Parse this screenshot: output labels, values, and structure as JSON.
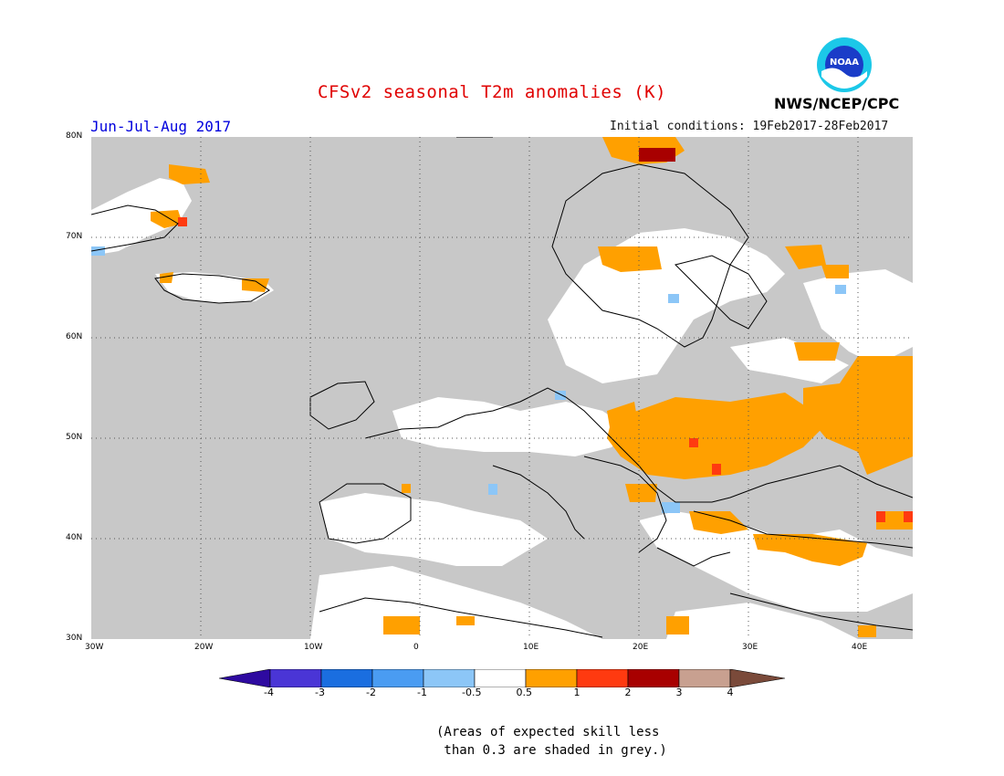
{
  "header": {
    "title": "CFSv2 seasonal T2m anomalies (K)",
    "season": "Jun-Jul-Aug 2017",
    "initial_conditions": "Initial conditions: 19Feb2017-28Feb2017",
    "agency": "NWS/NCEP/CPC",
    "logo_text": "NOAA"
  },
  "map": {
    "background_color": "#c8c8c8",
    "lon_range": [
      -30,
      45
    ],
    "lat_range": [
      30,
      80
    ],
    "x_ticks": [
      "30W",
      "20W",
      "10W",
      "0",
      "10E",
      "20E",
      "30E",
      "40E"
    ],
    "y_ticks": [
      "80N",
      "70N",
      "60N",
      "50N",
      "40N",
      "30N"
    ],
    "regions": [
      {
        "name": "Greenland",
        "lon_range": [
          -30,
          -17
        ],
        "lat_range": [
          70,
          80
        ],
        "fill": "white"
      },
      {
        "name": "Iceland",
        "lon_range": [
          -24,
          -13
        ],
        "lat_range": [
          63.5,
          66.5
        ],
        "fill": "white"
      },
      {
        "name": "Svalbard",
        "lon_range": [
          11,
          28
        ],
        "lat_range": [
          77,
          80
        ],
        "fill": "orange"
      },
      {
        "name": "Scandinavia",
        "lon_range": [
          5,
          31
        ],
        "lat_range": [
          55,
          71
        ],
        "fill": "mixed"
      },
      {
        "name": "Ukraine / Black Sea",
        "lon_range": [
          22,
          40
        ],
        "lat_range": [
          44,
          52
        ],
        "fill": "orange"
      },
      {
        "name": "Western Russia",
        "lon_range": [
          35,
          45
        ],
        "lat_range": [
          47,
          58
        ],
        "fill": "orange"
      },
      {
        "name": "Turkey",
        "lon_range": [
          26,
          44
        ],
        "lat_range": [
          36,
          42
        ],
        "fill": "orange"
      }
    ]
  },
  "colorbar": {
    "labels": [
      "-4",
      "-3",
      "-2",
      "-1",
      "-0.5",
      "0.5",
      "1",
      "2",
      "3",
      "4"
    ],
    "colors": [
      "#2e0aa0",
      "#4a35d6",
      "#1a6ee0",
      "#4a9cf2",
      "#8cc6f7",
      "#ffffff",
      "#ffa000",
      "#ff3a10",
      "#a80000",
      "#c8a090",
      "#7a4a3a"
    ]
  },
  "note": "(Areas of expected skill less\n than 0.3 are shaded in grey.)"
}
